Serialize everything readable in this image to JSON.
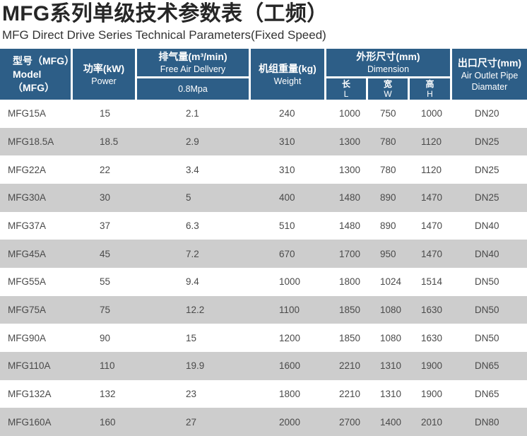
{
  "page": {
    "title": "MFG系列单级技术参数表（工频）",
    "subtitle": "MFG Direct Drive Series Technical Parameters(Fixed Speed)"
  },
  "colors": {
    "header_bg": "#2d5e87",
    "header_text": "#ffffff",
    "row_bg": "#ffffff",
    "row_alt_bg": "#cdcdcd",
    "body_text": "#4a4a4a",
    "title_text": "#262626"
  },
  "table": {
    "headers": {
      "model": {
        "zh": "型号（MFG）",
        "en": "Model（MFG）"
      },
      "power": {
        "zh": "功率(kW)",
        "en": "Power"
      },
      "free_air": {
        "zh": "排气量(m³/min)",
        "en": "Free Air Dellvery",
        "sub": "0.8Mpa"
      },
      "weight": {
        "zh": "机组重量(kg)",
        "en": "Weight"
      },
      "dimension": {
        "zh": "外形尺寸(mm)",
        "en": "Dimension",
        "length_zh": "长",
        "length_en": "L",
        "width_zh": "宽",
        "width_en": "W",
        "height_zh": "高",
        "height_en": "H"
      },
      "outlet": {
        "zh": "出口尺寸(mm)",
        "en": "Air Outlet Pipe Diamater"
      }
    },
    "rows": [
      [
        "MFG15A",
        "15",
        "2.1",
        "240",
        "1000",
        "750",
        "1000",
        "DN20"
      ],
      [
        "MFG18.5A",
        "18.5",
        "2.9",
        "310",
        "1300",
        "780",
        "1120",
        "DN25"
      ],
      [
        "MFG22A",
        "22",
        "3.4",
        "310",
        "1300",
        "780",
        "1120",
        "DN25"
      ],
      [
        "MFG30A",
        "30",
        "5",
        "400",
        "1480",
        "890",
        "1470",
        "DN25"
      ],
      [
        "MFG37A",
        "37",
        "6.3",
        "510",
        "1480",
        "890",
        "1470",
        "DN40"
      ],
      [
        "MFG45A",
        "45",
        "7.2",
        "670",
        "1700",
        "950",
        "1470",
        "DN40"
      ],
      [
        "MFG55A",
        "55",
        "9.4",
        "1000",
        "1800",
        "1024",
        "1514",
        "DN50"
      ],
      [
        "MFG75A",
        "75",
        "12.2",
        "1100",
        "1850",
        "1080",
        "1630",
        "DN50"
      ],
      [
        "MFG90A",
        "90",
        "15",
        "1200",
        "1850",
        "1080",
        "1630",
        "DN50"
      ],
      [
        "MFG110A",
        "110",
        "19.9",
        "1600",
        "2210",
        "1310",
        "1900",
        "DN65"
      ],
      [
        "MFG132A",
        "132",
        "23",
        "1800",
        "2210",
        "1310",
        "1900",
        "DN65"
      ],
      [
        "MFG160A",
        "160",
        "27",
        "2000",
        "2700",
        "1400",
        "2010",
        "DN80"
      ]
    ]
  }
}
